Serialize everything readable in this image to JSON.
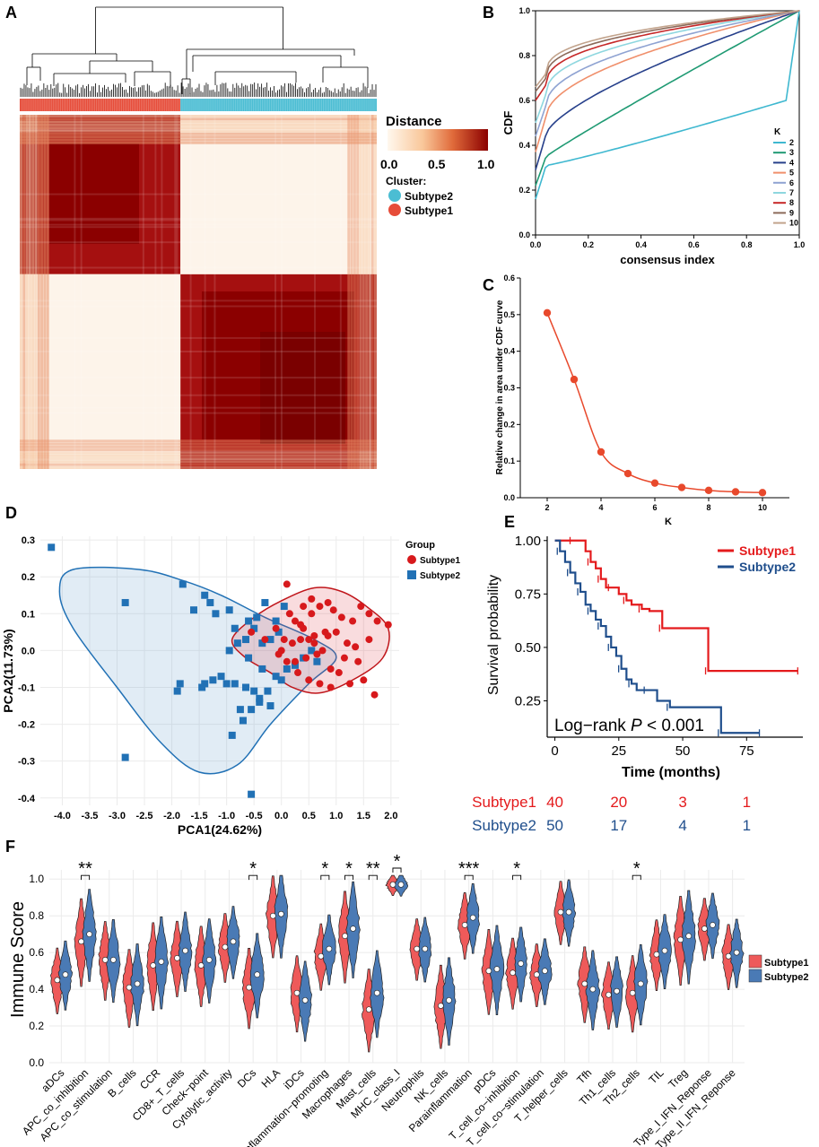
{
  "panel_labels": [
    "A",
    "B",
    "C",
    "D",
    "E",
    "F"
  ],
  "chart_data": [
    {
      "panel": "A",
      "type": "heatmap",
      "title": "",
      "legend_title": "Distance",
      "colorbar_ticks": [
        "0.0",
        "0.5",
        "1.0"
      ],
      "color_low": "#fff8ee",
      "color_high": "#8b0000",
      "cluster_legend_title": "Cluster:",
      "clusters": [
        {
          "name": "Subtype2",
          "color": "#4bbdd3"
        },
        {
          "name": "Subtype1",
          "color": "#e64c39"
        }
      ],
      "n_samples_left": 90,
      "n_samples_right": 110
    },
    {
      "panel": "B",
      "type": "line",
      "xlabel": "consensus index",
      "ylabel": "CDF",
      "xlim": [
        0,
        1
      ],
      "ylim": [
        0,
        1
      ],
      "xticks": [
        "0.0",
        "0.2",
        "0.4",
        "0.6",
        "0.8",
        "1.0"
      ],
      "yticks": [
        "0.0",
        "0.2",
        "0.4",
        "0.6",
        "0.8",
        "1.0"
      ],
      "legend_title": "K",
      "series": [
        {
          "name": "2",
          "color": "#3fb8d0",
          "start": 0.16,
          "knee": 0.31,
          "shape": 1.55
        },
        {
          "name": "3",
          "color": "#1f9a73",
          "start": 0.22,
          "knee": 0.35,
          "shape": 0.95
        },
        {
          "name": "4",
          "color": "#27408b",
          "start": 0.29,
          "knee": 0.45,
          "shape": 0.7
        },
        {
          "name": "5",
          "color": "#f08f6b",
          "start": 0.37,
          "knee": 0.53,
          "shape": 0.55
        },
        {
          "name": "6",
          "color": "#8fa3d2",
          "start": 0.44,
          "knee": 0.58,
          "shape": 0.5
        },
        {
          "name": "7",
          "color": "#8ed7df",
          "start": 0.5,
          "knee": 0.63,
          "shape": 0.45
        },
        {
          "name": "8",
          "color": "#c62828",
          "start": 0.6,
          "knee": 0.67,
          "shape": 0.42
        },
        {
          "name": "9",
          "color": "#8c6a5a",
          "start": 0.64,
          "knee": 0.7,
          "shape": 0.4
        },
        {
          "name": "10",
          "color": "#c2a38c",
          "start": 0.66,
          "knee": 0.72,
          "shape": 0.38
        }
      ]
    },
    {
      "panel": "C",
      "type": "line",
      "xlabel": "K",
      "ylabel": "Relative change in area under CDF curve",
      "xlim": [
        1,
        11
      ],
      "ylim": [
        0,
        0.6
      ],
      "xticks": [
        2,
        4,
        6,
        8,
        10
      ],
      "yticks": [
        "0.0",
        "0.1",
        "0.2",
        "0.3",
        "0.4",
        "0.5",
        "0.6"
      ],
      "color": "#e8492c",
      "x": [
        2,
        3,
        4,
        5,
        6,
        7,
        8,
        9,
        10
      ],
      "y": [
        0.505,
        0.323,
        0.125,
        0.066,
        0.04,
        0.028,
        0.02,
        0.016,
        0.014
      ]
    },
    {
      "panel": "D",
      "type": "scatter",
      "xlabel": "PCA1(24.62%)",
      "ylabel": "PCA2(11.73%)",
      "xlim": [
        -4.4,
        2.15
      ],
      "ylim": [
        -0.42,
        0.31
      ],
      "xticks": [
        "-4.0",
        "-3.5",
        "-3.0",
        "-2.5",
        "-2.0",
        "-1.5",
        "-1.0",
        "-0.5",
        "0.0",
        "0.5",
        "1.0",
        "1.5",
        "2.0"
      ],
      "yticks": [
        "0.3",
        "0.2",
        "0.1",
        "0.0",
        "-0.1",
        "-0.2",
        "-0.3",
        "-0.4"
      ],
      "legend_title": "Group",
      "series": [
        {
          "name": "Subtype1",
          "color": "#d7191c",
          "fill": "rgba(220,60,70,0.18)",
          "marker": "circle",
          "x": [
            0.1,
            0.55,
            0.85,
            0.4,
            0.7,
            0.95,
            1.1,
            1.3,
            1.45,
            1.6,
            1.75,
            1.95,
            1.6,
            1.35,
            1.2,
            1.0,
            0.8,
            0.6,
            0.5,
            0.35,
            0.2,
            0.05,
            0.0,
            -0.05,
            0.1,
            0.25,
            0.45,
            0.65,
            0.75,
            0.9,
            1.05,
            1.25,
            1.5,
            1.7,
            0.3,
            0.5,
            0.7,
            0.9,
            0.25,
            0.4,
            0.6,
            0.15,
            -0.55,
            -0.3,
            -0.1,
            0.35,
            0.55,
            0.85,
            1.15,
            1.4
          ],
          "y": [
            0.18,
            0.14,
            0.13,
            0.12,
            0.12,
            0.11,
            0.09,
            0.08,
            0.12,
            0.1,
            0.08,
            0.07,
            0.03,
            0.01,
            0.02,
            0.05,
            0.05,
            0.04,
            0.03,
            0.03,
            0.02,
            0.03,
            0.0,
            -0.01,
            -0.03,
            -0.03,
            -0.02,
            -0.01,
            0.0,
            -0.05,
            -0.06,
            -0.09,
            -0.08,
            -0.12,
            -0.06,
            -0.08,
            -0.09,
            -0.1,
            0.08,
            0.06,
            0.02,
            0.1,
            0.05,
            0.03,
            0.06,
            0.07,
            0.1,
            0.04,
            -0.02,
            -0.03
          ]
        },
        {
          "name": "Subtype2",
          "color": "#2171b5",
          "marker": "square",
          "x": [
            -4.2,
            -2.85,
            -1.8,
            -1.4,
            -1.3,
            -1.6,
            -1.2,
            -0.95,
            -0.85,
            -0.6,
            -0.45,
            -0.3,
            -0.1,
            0.05,
            -0.05,
            -0.2,
            -0.35,
            -0.5,
            -0.65,
            -0.8,
            -0.95,
            -1.1,
            -1.25,
            -1.4,
            -1.9,
            -1.85,
            -1.45,
            -1.0,
            -0.85,
            -0.65,
            -0.5,
            -0.4,
            -0.25,
            -0.1,
            0.1,
            0.25,
            0.4,
            0.55,
            0.65,
            -0.75,
            -0.9,
            -0.55,
            -0.7,
            -0.4,
            -0.2,
            0.0,
            -2.85,
            -0.55,
            -0.35,
            -0.6
          ],
          "y": [
            0.28,
            0.13,
            0.18,
            0.15,
            0.13,
            0.11,
            0.1,
            0.11,
            0.06,
            0.08,
            0.09,
            0.13,
            0.08,
            0.12,
            0.05,
            0.03,
            0.02,
            0.06,
            0.03,
            0.02,
            0.0,
            -0.07,
            -0.08,
            -0.09,
            -0.11,
            -0.09,
            -0.1,
            -0.09,
            -0.09,
            -0.1,
            -0.11,
            -0.13,
            -0.11,
            -0.07,
            -0.05,
            -0.04,
            -0.02,
            0.0,
            -0.03,
            -0.16,
            -0.23,
            -0.16,
            -0.19,
            -0.14,
            -0.15,
            -0.08,
            -0.29,
            -0.39,
            -0.05,
            -0.02
          ]
        }
      ]
    },
    {
      "panel": "E",
      "type": "line",
      "xlabel": "Time (months)",
      "ylabel": "Survival probability",
      "xlim": [
        -3,
        97
      ],
      "ylim": [
        0.08,
        1.02
      ],
      "xticks": [
        0,
        25,
        50,
        75
      ],
      "yticks": [
        "1.00",
        "0.75",
        "0.50",
        "0.25"
      ],
      "annotation": "Log−rank P < 0.001",
      "annotation_prefix": "Log−rank ",
      "annotation_p": "P",
      "annotation_suffix": " < 0.001",
      "series": [
        {
          "name": "Subtype1",
          "color": "#e41a1c",
          "x": [
            0,
            7,
            12,
            14,
            16,
            18,
            20,
            22,
            25,
            28,
            30,
            34,
            37,
            42,
            58,
            60,
            95
          ],
          "y": [
            1.0,
            1.0,
            0.95,
            0.9,
            0.87,
            0.82,
            0.78,
            0.78,
            0.75,
            0.72,
            0.7,
            0.68,
            0.67,
            0.59,
            0.59,
            0.39,
            0.39
          ]
        },
        {
          "name": "Subtype2",
          "color": "#1f4e8c",
          "x": [
            0,
            2,
            4,
            6,
            8,
            10,
            12,
            14,
            16,
            18,
            20,
            22,
            24,
            26,
            28,
            30,
            32,
            36,
            40,
            45,
            60,
            65,
            80
          ],
          "y": [
            1.0,
            0.95,
            0.9,
            0.85,
            0.8,
            0.76,
            0.7,
            0.67,
            0.63,
            0.6,
            0.55,
            0.5,
            0.46,
            0.4,
            0.35,
            0.33,
            0.3,
            0.3,
            0.25,
            0.22,
            0.22,
            0.1,
            0.1
          ]
        }
      ],
      "risk_table": {
        "times": [
          0,
          25,
          50,
          75
        ],
        "rows": [
          {
            "name": "Subtype1",
            "color": "#e41a1c",
            "counts": [
              "40",
              "20",
              "3",
              "1"
            ]
          },
          {
            "name": "Subtype2",
            "color": "#1f4e8c",
            "counts": [
              "50",
              "17",
              "4",
              "1"
            ]
          }
        ]
      }
    },
    {
      "panel": "F",
      "type": "violin",
      "ylabel": "Immune Score",
      "ylim": [
        0,
        1.05
      ],
      "yticks": [
        "0.0",
        "0.2",
        "0.4",
        "0.6",
        "0.8",
        "1.0"
      ],
      "series": [
        {
          "name": "Subtype1",
          "color": "#ee5a5a"
        },
        {
          "name": "Subtype2",
          "color": "#4a7ab5"
        }
      ],
      "categories": [
        "aDCs",
        "APC_co_inhibition",
        "APC_co_stimulation",
        "B_cells",
        "CCR",
        "CD8+_T_cells",
        "Check−point",
        "Cytolytic_activity",
        "DCs",
        "HLA",
        "iDCs",
        "Inflammation−promoting",
        "Macrophages",
        "Mast_cells",
        "MHC_class_I",
        "Neutrophils",
        "NK_cells",
        "Parainflammation",
        "pDCs",
        "T_cell_co−inhibition",
        "T_cell_co−stimulation",
        "T_helper_cells",
        "Tfh",
        "Th1_cells",
        "Th2_cells",
        "TIL",
        "Treg",
        "Type_I_IFN_Reponse",
        "Type_II_IFN_Reponse"
      ],
      "medians_s1": [
        0.45,
        0.66,
        0.56,
        0.41,
        0.53,
        0.57,
        0.53,
        0.63,
        0.41,
        0.8,
        0.38,
        0.58,
        0.69,
        0.29,
        0.97,
        0.62,
        0.31,
        0.75,
        0.5,
        0.49,
        0.48,
        0.82,
        0.43,
        0.37,
        0.38,
        0.59,
        0.67,
        0.73,
        0.58
      ],
      "medians_s2": [
        0.48,
        0.7,
        0.56,
        0.43,
        0.55,
        0.61,
        0.56,
        0.66,
        0.48,
        0.81,
        0.34,
        0.62,
        0.73,
        0.38,
        0.97,
        0.62,
        0.34,
        0.79,
        0.51,
        0.54,
        0.5,
        0.82,
        0.4,
        0.39,
        0.43,
        0.61,
        0.69,
        0.75,
        0.6
      ],
      "significance": [
        "",
        "**",
        "",
        "",
        "",
        "",
        "",
        "",
        "*",
        "",
        "",
        "*",
        "*",
        "**",
        "*",
        "",
        "",
        "***",
        "",
        "*",
        "",
        "",
        "",
        "",
        "*",
        "",
        "",
        "",
        ""
      ]
    }
  ]
}
